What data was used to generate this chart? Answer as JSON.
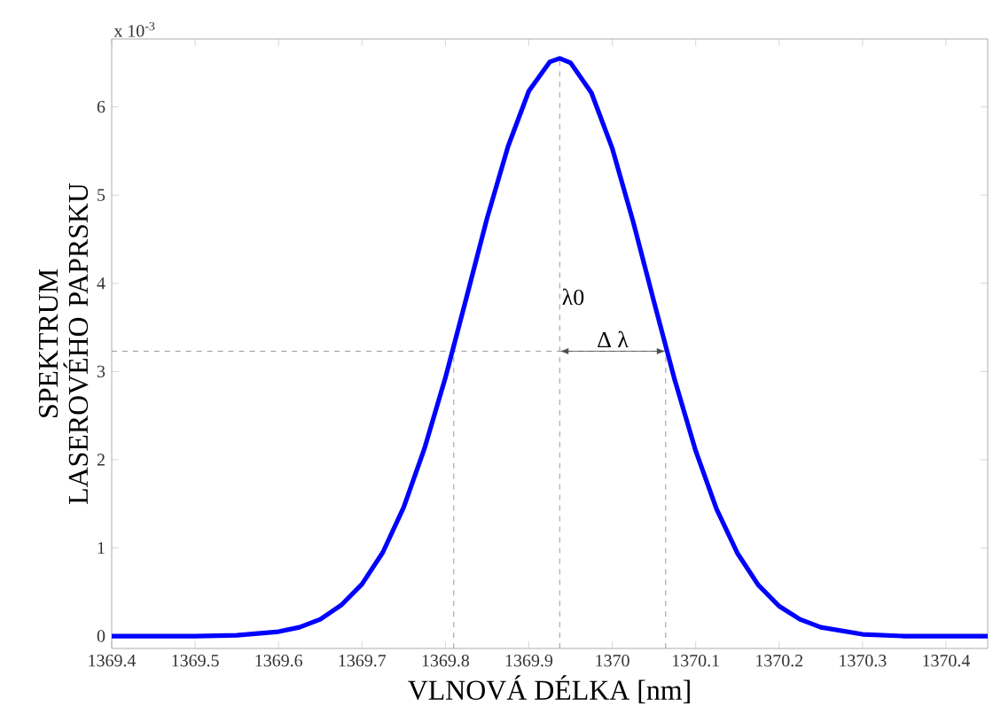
{
  "chart_data": {
    "type": "line",
    "xlabel": "VLNOVÁ DÉLKA [nm]",
    "ylabel": "SPEKTRUM LASEROVÉHO PAPRSKU",
    "x": [
      1369.4,
      1369.5,
      1369.55,
      1369.6,
      1369.625,
      1369.65,
      1369.675,
      1369.7,
      1369.725,
      1369.75,
      1369.775,
      1369.8,
      1369.825,
      1369.85,
      1369.875,
      1369.9,
      1369.925,
      1369.937,
      1369.95,
      1369.975,
      1370.0,
      1370.025,
      1370.05,
      1370.075,
      1370.1,
      1370.125,
      1370.15,
      1370.175,
      1370.2,
      1370.225,
      1370.25,
      1370.3,
      1370.35,
      1370.45
    ],
    "series": [
      {
        "color": "#0000ff",
        "values": [
          0.0,
          0.0,
          0.01,
          0.05,
          0.1,
          0.19,
          0.35,
          0.59,
          0.95,
          1.46,
          2.13,
          2.93,
          3.83,
          4.74,
          5.55,
          6.18,
          6.51,
          6.55,
          6.5,
          6.16,
          5.53,
          4.7,
          3.79,
          2.9,
          2.1,
          1.44,
          0.94,
          0.58,
          0.34,
          0.19,
          0.1,
          0.02,
          0.0,
          0.0
        ]
      }
    ],
    "xlim": [
      1369.4,
      1370.45
    ],
    "ylim": [
      -0.14,
      6.77
    ],
    "xticks": [
      1369.4,
      1369.5,
      1369.6,
      1369.7,
      1369.8,
      1369.9,
      1370,
      1370.1,
      1370.2,
      1370.3,
      1370.4
    ],
    "yticks": [
      0,
      1,
      2,
      3,
      4,
      5,
      6
    ],
    "ref_lines": [
      {
        "axis": "x",
        "value": 1369.937,
        "label": "λ0",
        "color": "#808080",
        "line_style": "dashed"
      },
      {
        "axis": "x",
        "value": 1369.81,
        "color": "#808080",
        "line_style": "dashed"
      },
      {
        "axis": "x",
        "value": 1370.064,
        "color": "#808080",
        "line_style": "dashed"
      },
      {
        "axis": "y",
        "value": 3.23,
        "color": "#808080",
        "line_style": "dashed"
      }
    ],
    "annotations": [
      "x 10$^{-3}$",
      {
        "text": "Δ λ",
        "x": 1370.0,
        "y": 3.23
      }
    ],
    "grid": false,
    "marker": "none",
    "line_style": "solid"
  }
}
